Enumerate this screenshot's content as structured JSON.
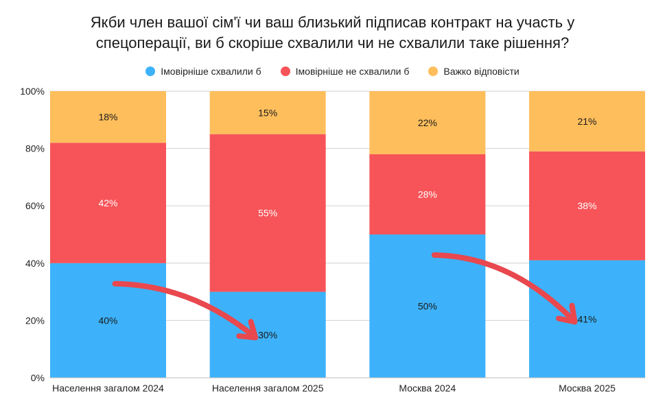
{
  "title": {
    "line1": "Якби член вашої сім'ї чи ваш близький підписав контракт на участь у",
    "line2": "спецоперації, ви б скоріше схвалили чи не схвалили таке рішення?"
  },
  "colors": {
    "approve": "#3DB2FA",
    "disapprove": "#F75459",
    "hard": "#FEBE5C",
    "arrow": "#E8484E",
    "grid": "#d0d0d0"
  },
  "chart_data": {
    "type": "bar",
    "stacked": true,
    "title": "Якби член вашої сім'ї чи ваш близький підписав контракт на участь у спецоперації, ви б скоріше схвалили чи не схвалили таке рішення?",
    "categories": [
      "Населення загалом 2024",
      "Населення загалом 2025",
      "Москва 2024",
      "Москва 2025"
    ],
    "series": [
      {
        "name": "Імовірніше схвалили б",
        "values": [
          40,
          30,
          50,
          41
        ],
        "labels": [
          "40%",
          "30%",
          "50%",
          "41%"
        ],
        "color_key": "approve",
        "label_color": "#1a1a1a"
      },
      {
        "name": "Імовірніше не схвалили б",
        "values": [
          42,
          55,
          28,
          38
        ],
        "labels": [
          "42%",
          "55%",
          "28%",
          "38%"
        ],
        "color_key": "disapprove",
        "label_color": "#ffffff"
      },
      {
        "name": "Важко відповісти",
        "values": [
          18,
          15,
          22,
          21
        ],
        "labels": [
          "18%",
          "15%",
          "22%",
          "21%"
        ],
        "color_key": "hard",
        "label_color": "#1a1a1a"
      }
    ],
    "y_ticks": [
      "0%",
      "20%",
      "40%",
      "60%",
      "80%",
      "100%"
    ],
    "ylim": [
      0,
      100
    ],
    "grid": true,
    "legend_position": "top-center",
    "annotations": [
      {
        "type": "arrow",
        "from_category": 0,
        "to_category": 1,
        "meaning": "decline in approval"
      },
      {
        "type": "arrow",
        "from_category": 2,
        "to_category": 3,
        "meaning": "decline in approval"
      }
    ]
  }
}
